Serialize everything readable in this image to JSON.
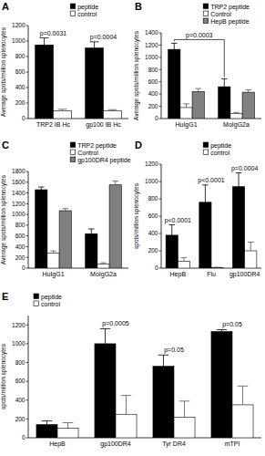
{
  "chart_data": [
    {
      "type": "bar",
      "title": "A",
      "y_label": "Average spots/million splenocytes",
      "categories": [
        "TRP2 IB Hc",
        "gp100 IB Hc"
      ],
      "series": [
        {
          "name": "peptide",
          "color": "#000000",
          "values": [
            950,
            910
          ],
          "errors": [
            90,
            80
          ]
        },
        {
          "name": "control",
          "color": "#ffffff",
          "values": [
            100,
            100
          ],
          "errors": [
            20,
            15
          ]
        }
      ],
      "ylim": [
        0,
        1200
      ],
      "yticks": [
        0,
        200,
        400,
        600,
        800,
        1000,
        1200
      ],
      "annotations": [
        {
          "text": "p=0.0031",
          "category": "TRP2 IB Hc"
        },
        {
          "text": "p=0.0004",
          "category": "gp100 IB Hc"
        }
      ],
      "legend": "top-right"
    },
    {
      "type": "bar",
      "title": "B",
      "y_label": "Average spots/million splenocytes",
      "categories": [
        "HuIgG1",
        "MoIgG2a"
      ],
      "series": [
        {
          "name": "TRP2 peptide",
          "color": "#000000",
          "values": [
            1130,
            520
          ],
          "errors": [
            100,
            130
          ]
        },
        {
          "name": "Control",
          "color": "#ffffff",
          "values": [
            180,
            80
          ],
          "errors": [
            60,
            20
          ]
        },
        {
          "name": "HepB peptide",
          "color": "#808080",
          "values": [
            440,
            430
          ],
          "errors": [
            50,
            40
          ]
        }
      ],
      "ylim": [
        0,
        1400
      ],
      "yticks": [
        0,
        200,
        400,
        600,
        800,
        1000,
        1200,
        1400
      ],
      "annotations": [
        {
          "text": "p=0.0003",
          "between": [
            "HuIgG1",
            "MoIgG2a"
          ]
        }
      ],
      "legend": "top-right"
    },
    {
      "type": "bar",
      "title": "C",
      "y_label": "Average spots/million splenocytes",
      "categories": [
        "HuIgG1",
        "MoIgG2a"
      ],
      "series": [
        {
          "name": "TRP2 peptide",
          "color": "#000000",
          "values": [
            1460,
            640
          ],
          "errors": [
            50,
            90
          ]
        },
        {
          "name": "Control",
          "color": "#ffffff",
          "values": [
            280,
            80
          ],
          "errors": [
            40,
            20
          ]
        },
        {
          "name": "gp100DR4 peptide",
          "color": "#808080",
          "values": [
            1070,
            1550
          ],
          "errors": [
            40,
            70
          ]
        }
      ],
      "ylim": [
        0,
        1800
      ],
      "yticks": [
        0,
        200,
        400,
        600,
        800,
        1000,
        1200,
        1400,
        1600,
        1800
      ],
      "annotations": [],
      "legend": "top-right"
    },
    {
      "type": "bar",
      "title": "D",
      "y_label": "spots/million splenocytes",
      "categories": [
        "HepB",
        "Flu",
        "gp100DR4"
      ],
      "series": [
        {
          "name": "peptide",
          "color": "#000000",
          "values": [
            380,
            760,
            940
          ],
          "errors": [
            120,
            200,
            160
          ]
        },
        {
          "name": "control",
          "color": "#ffffff",
          "values": [
            80,
            5,
            200
          ],
          "errors": [
            40,
            5,
            100
          ]
        }
      ],
      "ylim": [
        0,
        1200
      ],
      "yticks": [
        0,
        200,
        400,
        600,
        800,
        1000,
        1200
      ],
      "annotations": [
        {
          "text": "p<0.0001",
          "category": "HepB"
        },
        {
          "text": "p<0.0001",
          "category": "Flu"
        },
        {
          "text": "p=0.0004",
          "category": "gp100DR4"
        }
      ],
      "legend": "top-right"
    },
    {
      "type": "bar",
      "title": "E",
      "y_label": "spots/million splenocytes",
      "categories": [
        "HepB",
        "gp100DR4",
        "Tyr DR4",
        "mTPI"
      ],
      "series": [
        {
          "name": "peptide",
          "color": "#000000",
          "values": [
            140,
            1000,
            760,
            1130
          ],
          "errors": [
            40,
            160,
            120,
            20
          ]
        },
        {
          "name": "control",
          "color": "#ffffff",
          "values": [
            100,
            250,
            220,
            350
          ],
          "errors": [
            60,
            200,
            170,
            200
          ]
        }
      ],
      "ylim": [
        0,
        1300
      ],
      "yticks": [
        0,
        200,
        400,
        600,
        800,
        1000,
        1200
      ],
      "annotations": [
        {
          "text": "p=0.0005",
          "category": "gp100DR4"
        },
        {
          "text": "p=0.05",
          "category": "Tyr DR4"
        },
        {
          "text": "p=0.05",
          "category": "mTPI"
        }
      ],
      "legend": "top-left"
    }
  ]
}
